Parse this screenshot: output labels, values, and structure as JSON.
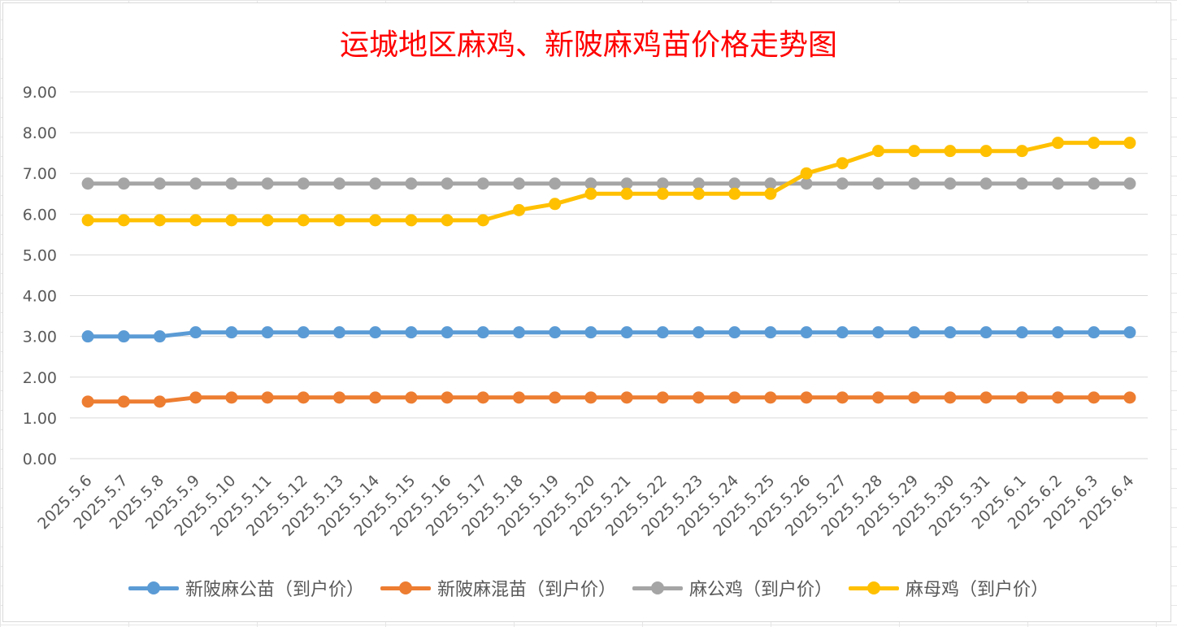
{
  "chart_data": {
    "type": "line",
    "title": "运城地区麻鸡、新陂麻鸡苗价格走势图",
    "xlabel": "",
    "ylabel": "",
    "ylim": [
      0,
      9
    ],
    "y_ticks": [
      "0.00",
      "1.00",
      "2.00",
      "3.00",
      "4.00",
      "5.00",
      "6.00",
      "7.00",
      "8.00",
      "9.00"
    ],
    "grid": true,
    "legend_position": "bottom",
    "categories": [
      "2025.5.6",
      "2025.5.7",
      "2025.5.8",
      "2025.5.9",
      "2025.5.10",
      "2025.5.11",
      "2025.5.12",
      "2025.5.13",
      "2025.5.14",
      "2025.5.15",
      "2025.5.16",
      "2025.5.17",
      "2025.5.18",
      "2025.5.19",
      "2025.5.20",
      "2025.5.21",
      "2025.5.22",
      "2025.5.23",
      "2025.5.24",
      "2025.5.25",
      "2025.5.26",
      "2025.5.27",
      "2025.5.28",
      "2025.5.29",
      "2025.5.30",
      "2025.5.31",
      "2025.6.1",
      "2025.6.2",
      "2025.6.3",
      "2025.6.4"
    ],
    "series": [
      {
        "name": "新陂麻公苗（到户价）",
        "color": "#5b9bd5",
        "values": [
          3.0,
          3.0,
          3.0,
          3.1,
          3.1,
          3.1,
          3.1,
          3.1,
          3.1,
          3.1,
          3.1,
          3.1,
          3.1,
          3.1,
          3.1,
          3.1,
          3.1,
          3.1,
          3.1,
          3.1,
          3.1,
          3.1,
          3.1,
          3.1,
          3.1,
          3.1,
          3.1,
          3.1,
          3.1,
          3.1
        ]
      },
      {
        "name": "新陂麻混苗（到户价）",
        "color": "#ed7d31",
        "values": [
          1.4,
          1.4,
          1.4,
          1.5,
          1.5,
          1.5,
          1.5,
          1.5,
          1.5,
          1.5,
          1.5,
          1.5,
          1.5,
          1.5,
          1.5,
          1.5,
          1.5,
          1.5,
          1.5,
          1.5,
          1.5,
          1.5,
          1.5,
          1.5,
          1.5,
          1.5,
          1.5,
          1.5,
          1.5,
          1.5
        ]
      },
      {
        "name": "麻公鸡（到户价）",
        "color": "#a5a5a5",
        "values": [
          6.75,
          6.75,
          6.75,
          6.75,
          6.75,
          6.75,
          6.75,
          6.75,
          6.75,
          6.75,
          6.75,
          6.75,
          6.75,
          6.75,
          6.75,
          6.75,
          6.75,
          6.75,
          6.75,
          6.75,
          6.75,
          6.75,
          6.75,
          6.75,
          6.75,
          6.75,
          6.75,
          6.75,
          6.75,
          6.75
        ]
      },
      {
        "name": "麻母鸡（到户价）",
        "color": "#ffc000",
        "values": [
          5.85,
          5.85,
          5.85,
          5.85,
          5.85,
          5.85,
          5.85,
          5.85,
          5.85,
          5.85,
          5.85,
          5.85,
          6.1,
          6.25,
          6.5,
          6.5,
          6.5,
          6.5,
          6.5,
          6.5,
          7.0,
          7.25,
          7.55,
          7.55,
          7.55,
          7.55,
          7.55,
          7.75,
          7.75,
          7.75
        ]
      }
    ]
  }
}
